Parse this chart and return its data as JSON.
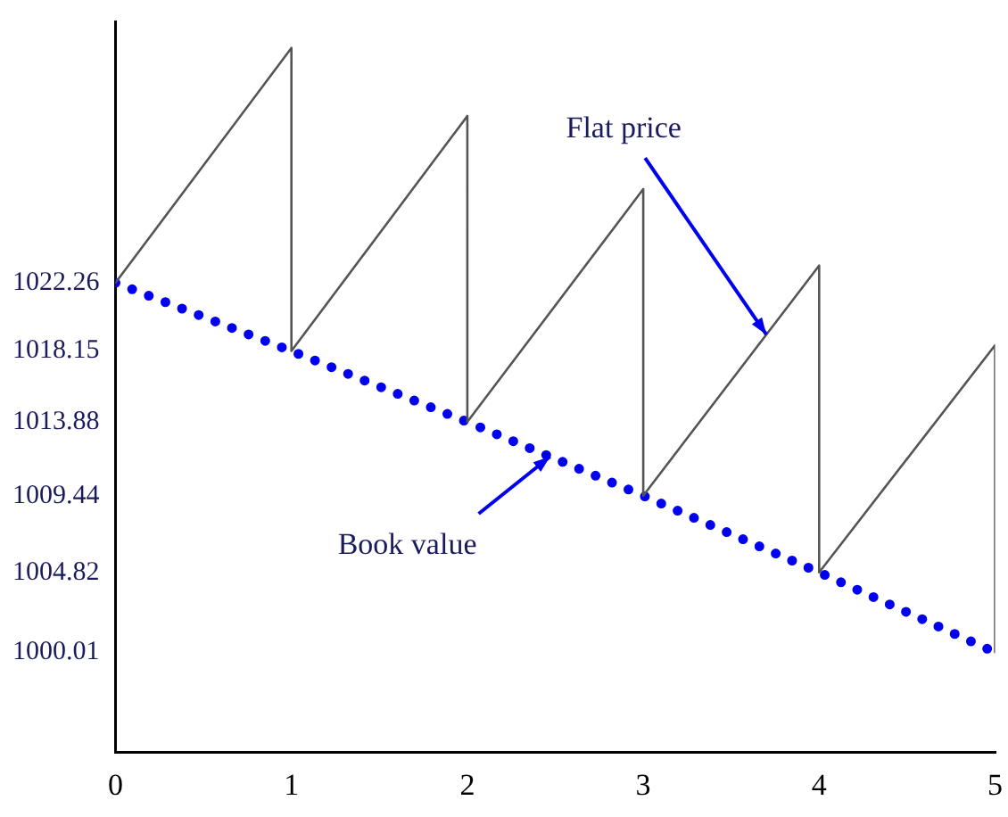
{
  "chart_data": {
    "type": "line",
    "x": [
      0,
      1,
      2,
      3,
      4,
      5
    ],
    "xlim": [
      0,
      5
    ],
    "xticks": [
      0,
      1,
      2,
      3,
      4,
      5
    ],
    "ylim": [
      994,
      1038
    ],
    "yticks": [
      1000.01,
      1004.82,
      1009.44,
      1013.88,
      1018.15,
      1022.26
    ],
    "grid": false,
    "legend": false,
    "marker": "none",
    "series": [
      {
        "color": "#555555",
        "x": [
          0,
          1,
          1,
          2,
          2,
          3,
          3,
          4,
          4,
          5,
          5
        ],
        "values": [
          1022.26,
          1036.4,
          1018.15,
          1032.3,
          1013.88,
          1027.9,
          1009.44,
          1023.3,
          1004.82,
          1018.5,
          1000.01
        ],
        "line_style": "solid"
      },
      {
        "color": "#0000ee",
        "values": [
          1022.26,
          1018.15,
          1013.88,
          1009.44,
          1004.82,
          1000.01
        ],
        "line_style": "dotted"
      }
    ],
    "annotations": [
      {
        "text": "Flat price",
        "x": 3.7,
        "y": 1019.14
      },
      {
        "text": "Book value",
        "x": 2.47,
        "y": 1011.79
      }
    ]
  }
}
